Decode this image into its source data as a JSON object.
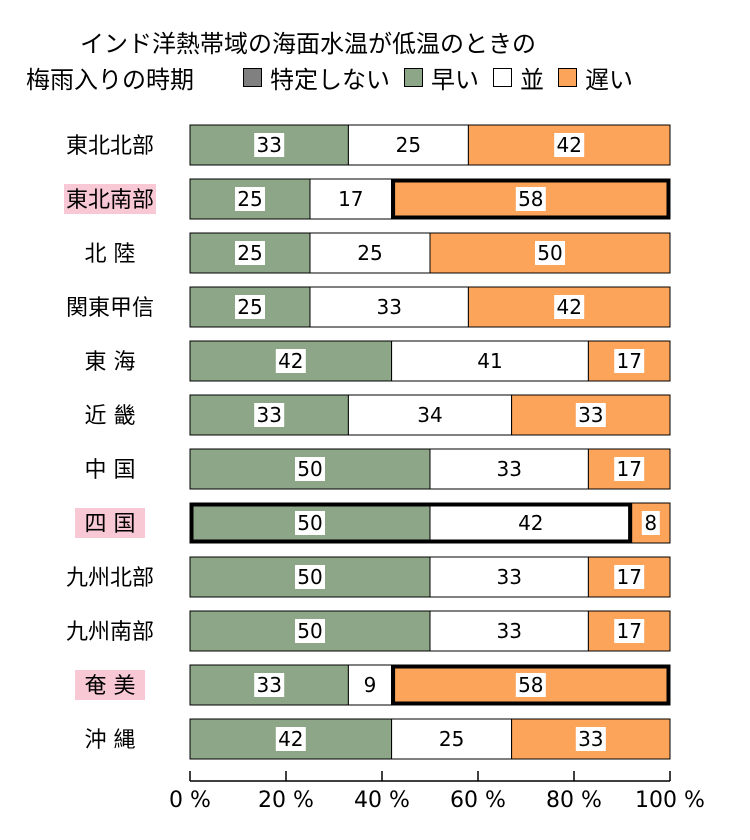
{
  "title_line1": "インド洋熱帯域の海面水温が低温のときの",
  "title_line2": "梅雨入りの時期",
  "legend": [
    {
      "label": "特定しない",
      "color": "#808080"
    },
    {
      "label": "早い",
      "color": "#8ca687"
    },
    {
      "label": "並",
      "color": "#ffffff"
    },
    {
      "label": "遅い",
      "color": "#fca45a"
    }
  ],
  "chart_data": {
    "type": "bar",
    "orientation": "horizontal",
    "stacked": true,
    "categories": [
      "東北北部",
      "東北南部",
      "北 陸",
      "関東甲信",
      "東 海",
      "近 畿",
      "中 国",
      "四 国",
      "九州北部",
      "九州南部",
      "奄 美",
      "沖 縄"
    ],
    "series": [
      {
        "name": "早い",
        "color": "#8ca687",
        "values": [
          33,
          25,
          25,
          25,
          42,
          33,
          50,
          50,
          50,
          50,
          33,
          42
        ]
      },
      {
        "name": "並",
        "color": "#ffffff",
        "values": [
          25,
          17,
          25,
          33,
          41,
          34,
          33,
          42,
          33,
          33,
          9,
          25
        ]
      },
      {
        "name": "遅い",
        "color": "#fca45a",
        "values": [
          42,
          58,
          50,
          42,
          17,
          33,
          17,
          8,
          17,
          17,
          58,
          33
        ]
      }
    ],
    "highlighted_categories": [
      "東北南部",
      "四 国",
      "奄 美"
    ],
    "highlight_label_color": "#f8c8d4",
    "emphasized_segments": [
      {
        "category": "東北南部",
        "series": "遅い"
      },
      {
        "category": "四 国",
        "series": [
          "早い",
          "並"
        ]
      },
      {
        "category": "奄 美",
        "series": "遅い"
      }
    ],
    "xlim": [
      0,
      100
    ],
    "xticks": [
      "0 %",
      "20 %",
      "40 %",
      "60 %",
      "80 %",
      "100 %"
    ],
    "grid": false,
    "legend_position": "top"
  }
}
